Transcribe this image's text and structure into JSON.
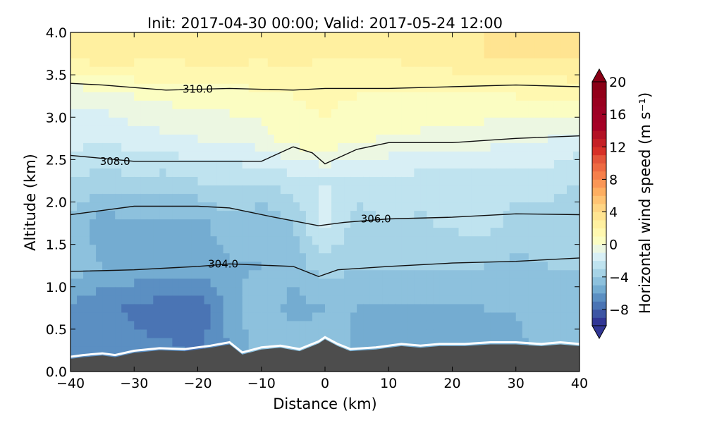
{
  "chart_data": {
    "type": "heatmap",
    "title": "Init: 2017-04-30 00:00; Valid: 2017-05-24 12:00",
    "xlabel": "Distance (km)",
    "ylabel": "Altitude (km)",
    "xlim": [
      -40,
      40
    ],
    "ylim": [
      0.0,
      4.0
    ],
    "x_ticks": [
      -40,
      -30,
      -20,
      -10,
      0,
      10,
      20,
      30,
      40
    ],
    "x_tick_labels": [
      "−40",
      "−30",
      "−20",
      "−10",
      "0",
      "10",
      "20",
      "30",
      "40"
    ],
    "y_ticks": [
      0.0,
      0.5,
      1.0,
      1.5,
      2.0,
      2.5,
      3.0,
      3.5,
      4.0
    ],
    "y_tick_labels": [
      "0.0",
      "0.5",
      "1.0",
      "1.5",
      "2.0",
      "2.5",
      "3.0",
      "3.5",
      "4.0"
    ],
    "colorbar": {
      "label": "Horizontal wind speed (m s⁻¹)",
      "min": -10,
      "max": 20,
      "step": 1,
      "ticks": [
        -8,
        -4,
        0,
        4,
        8,
        12,
        16,
        20
      ],
      "tick_labels": [
        "−8",
        "−4",
        "0",
        "4",
        "8",
        "12",
        "16",
        "20"
      ],
      "colors": [
        "#313695",
        "#3d55a4",
        "#4a74b4",
        "#5b8fc2",
        "#74acd1",
        "#8dc1dd",
        "#a6d3e6",
        "#bfe3ef",
        "#d8eff5",
        "#ecf7e2",
        "#fbfdc2",
        "#fff8b0",
        "#fff0a0",
        "#ffe491",
        "#fed584",
        "#fec373",
        "#fdae61",
        "#fa9656",
        "#f67f4b",
        "#ee6a42",
        "#e4553a",
        "#d73027",
        "#c52026",
        "#b31225",
        "#a50026",
        "#a10025",
        "#9d0024",
        "#99001f",
        "#93001a",
        "#8a0016"
      ]
    },
    "wind_speed_field": {
      "x": [
        -40,
        -35,
        -30,
        -25,
        -20,
        -15,
        -10,
        -5,
        0,
        5,
        10,
        15,
        20,
        25,
        30,
        35,
        40
      ],
      "altitude": [
        0.25,
        0.75,
        1.25,
        1.75,
        2.25,
        2.75,
        3.25,
        3.75
      ],
      "values": [
        [
          -6.5,
          -6.2,
          -6.8,
          -6.8,
          -7.2,
          -6.0,
          -4.5,
          -4.0,
          -4.5,
          -5.2,
          -5.5,
          -5.5,
          -5.5,
          -5.5,
          -5.2,
          -5.0,
          -4.8
        ],
        [
          -6.2,
          -6.8,
          -7.2,
          -7.5,
          -7.8,
          -5.5,
          -4.0,
          -5.5,
          -5.0,
          -5.0,
          -5.2,
          -5.2,
          -5.2,
          -5.0,
          -5.0,
          -4.2,
          -4.5
        ],
        [
          -4.5,
          -5.0,
          -5.2,
          -5.5,
          -5.5,
          -5.2,
          -5.0,
          -4.5,
          -3.5,
          -4.0,
          -4.0,
          -4.0,
          -4.0,
          -4.0,
          -4.2,
          -4.0,
          -4.0
        ],
        [
          -4.5,
          -5.5,
          -5.2,
          -5.0,
          -5.5,
          -4.2,
          -5.0,
          -4.0,
          -1.5,
          -3.5,
          -3.0,
          -3.2,
          -2.8,
          -2.5,
          -3.5,
          -3.5,
          -4.0
        ],
        [
          -3.0,
          -3.5,
          -3.2,
          -3.5,
          -3.0,
          -3.0,
          -2.8,
          -2.5,
          -2.0,
          -2.5,
          -2.2,
          -2.5,
          -2.5,
          -2.5,
          -2.5,
          -2.5,
          -3.0
        ],
        [
          -1.5,
          -2.0,
          -1.5,
          -1.2,
          -1.0,
          -0.8,
          -0.5,
          0.5,
          0.8,
          0.2,
          -0.2,
          -0.2,
          -0.5,
          -0.5,
          -1.0,
          -1.0,
          -1.5
        ],
        [
          -0.8,
          -0.5,
          0.0,
          0.2,
          0.5,
          0.5,
          0.8,
          1.0,
          1.2,
          1.0,
          0.8,
          0.8,
          0.8,
          0.8,
          1.0,
          1.0,
          1.2
        ],
        [
          2.5,
          2.8,
          2.5,
          2.2,
          2.5,
          2.5,
          2.2,
          2.5,
          2.0,
          2.2,
          2.2,
          2.5,
          2.8,
          3.0,
          3.2,
          3.0,
          3.5
        ]
      ]
    },
    "theta_contours": [
      {
        "level": 304.0,
        "label": "304.0",
        "points": [
          [
            -40,
            1.18
          ],
          [
            -30,
            1.2
          ],
          [
            -20,
            1.24
          ],
          [
            -15,
            1.27
          ],
          [
            -5,
            1.24
          ],
          [
            -1,
            1.12
          ],
          [
            2,
            1.2
          ],
          [
            10,
            1.24
          ],
          [
            20,
            1.28
          ],
          [
            30,
            1.3
          ],
          [
            40,
            1.34
          ]
        ]
      },
      {
        "level": 306.0,
        "label": "306.0",
        "points": [
          [
            -40,
            1.85
          ],
          [
            -30,
            1.95
          ],
          [
            -20,
            1.95
          ],
          [
            -15,
            1.93
          ],
          [
            -8,
            1.82
          ],
          [
            -1,
            1.72
          ],
          [
            3,
            1.76
          ],
          [
            10,
            1.8
          ],
          [
            20,
            1.82
          ],
          [
            30,
            1.86
          ],
          [
            40,
            1.85
          ]
        ]
      },
      {
        "level": 308.0,
        "label": "308.0",
        "points": [
          [
            -40,
            2.55
          ],
          [
            -30,
            2.48
          ],
          [
            -20,
            2.48
          ],
          [
            -10,
            2.48
          ],
          [
            -5,
            2.65
          ],
          [
            -2,
            2.58
          ],
          [
            0,
            2.45
          ],
          [
            5,
            2.62
          ],
          [
            10,
            2.7
          ],
          [
            20,
            2.7
          ],
          [
            30,
            2.75
          ],
          [
            40,
            2.78
          ]
        ]
      },
      {
        "level": 310.0,
        "label": "310.0",
        "points": [
          [
            -40,
            3.4
          ],
          [
            -35,
            3.38
          ],
          [
            -25,
            3.32
          ],
          [
            -15,
            3.34
          ],
          [
            -5,
            3.32
          ],
          [
            0,
            3.34
          ],
          [
            10,
            3.34
          ],
          [
            20,
            3.36
          ],
          [
            30,
            3.38
          ],
          [
            40,
            3.36
          ]
        ]
      }
    ],
    "annotations": [
      "304.0",
      "306.0",
      "308.0",
      "310.0"
    ]
  }
}
